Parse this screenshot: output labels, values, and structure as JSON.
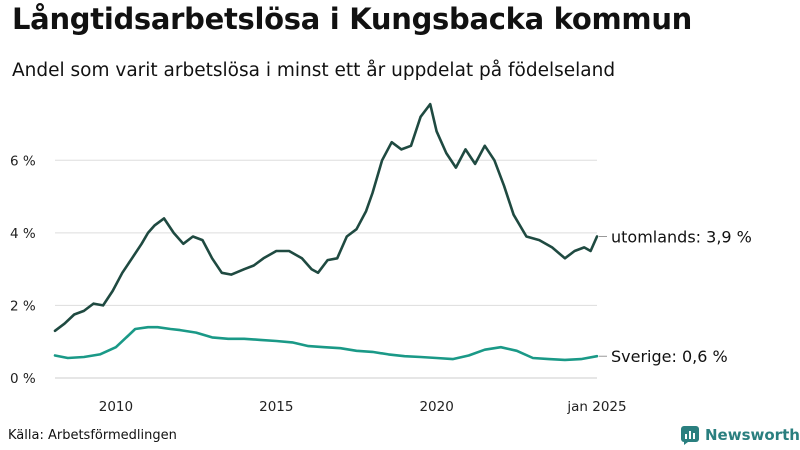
{
  "title": "Långtidsarbetslösa i Kungsbacka kommun",
  "subtitle": "Andel som varit arbetslösa i minst ett år uppdelat på födelseland",
  "source": "Källa: Arbetsförmedlingen",
  "brand": "Newsworthy",
  "colors": {
    "utomlands": "#1f4a41",
    "sverige": "#1a9987",
    "brand": "#2a7f7f",
    "grid": "#dddddd"
  },
  "chart_data": {
    "type": "line",
    "title": "Långtidsarbetslösa i Kungsbacka kommun",
    "subtitle": "Andel som varit arbetslösa i minst ett år uppdelat på födelseland",
    "xlabel": "",
    "ylabel": "",
    "x_range": [
      2008.1,
      2025.0
    ],
    "ylim": [
      0,
      7.8
    ],
    "y_ticks": [
      {
        "value": 0,
        "label": "0 %"
      },
      {
        "value": 2,
        "label": "2 %"
      },
      {
        "value": 4,
        "label": "4 %"
      },
      {
        "value": 6,
        "label": "6 %"
      }
    ],
    "x_ticks": [
      {
        "value": 2010,
        "label": "2010"
      },
      {
        "value": 2015,
        "label": "2015"
      },
      {
        "value": 2020,
        "label": "2020"
      },
      {
        "value": 2025,
        "label": "jan 2025"
      }
    ],
    "grid": true,
    "legend": "end-labels",
    "series": [
      {
        "key": "utomlands",
        "end_label": "utomlands: 3,9 %",
        "x": [
          2008.1,
          2008.4,
          2008.7,
          2009.0,
          2009.3,
          2009.6,
          2009.9,
          2010.2,
          2010.5,
          2010.8,
          2011.0,
          2011.2,
          2011.5,
          2011.8,
          2012.1,
          2012.4,
          2012.7,
          2013.0,
          2013.3,
          2013.6,
          2014.0,
          2014.3,
          2014.6,
          2015.0,
          2015.4,
          2015.8,
          2016.1,
          2016.3,
          2016.6,
          2016.9,
          2017.2,
          2017.5,
          2017.8,
          2018.0,
          2018.3,
          2018.6,
          2018.9,
          2019.2,
          2019.5,
          2019.8,
          2020.0,
          2020.3,
          2020.6,
          2020.9,
          2021.2,
          2021.5,
          2021.8,
          2022.1,
          2022.4,
          2022.8,
          2023.2,
          2023.6,
          2024.0,
          2024.3,
          2024.6,
          2024.8,
          2025.0
        ],
        "values": [
          1.3,
          1.5,
          1.75,
          1.85,
          2.05,
          2.0,
          2.4,
          2.9,
          3.3,
          3.7,
          4.0,
          4.2,
          4.4,
          4.0,
          3.7,
          3.9,
          3.8,
          3.3,
          2.9,
          2.85,
          3.0,
          3.1,
          3.3,
          3.5,
          3.5,
          3.3,
          3.0,
          2.9,
          3.25,
          3.3,
          3.9,
          4.1,
          4.6,
          5.1,
          6.0,
          6.5,
          6.3,
          6.4,
          7.2,
          7.55,
          6.8,
          6.2,
          5.8,
          6.3,
          5.9,
          6.4,
          6.0,
          5.3,
          4.5,
          3.9,
          3.8,
          3.6,
          3.3,
          3.5,
          3.6,
          3.5,
          3.9
        ]
      },
      {
        "key": "sverige",
        "end_label": "Sverige: 0,6 %",
        "x": [
          2008.1,
          2008.5,
          2009.0,
          2009.5,
          2010.0,
          2010.3,
          2010.6,
          2011.0,
          2011.3,
          2011.7,
          2012.0,
          2012.5,
          2013.0,
          2013.5,
          2014.0,
          2014.5,
          2015.0,
          2015.5,
          2016.0,
          2016.5,
          2017.0,
          2017.5,
          2018.0,
          2018.5,
          2019.0,
          2019.5,
          2020.0,
          2020.5,
          2021.0,
          2021.5,
          2022.0,
          2022.5,
          2023.0,
          2023.5,
          2024.0,
          2024.5,
          2025.0
        ],
        "values": [
          0.62,
          0.55,
          0.58,
          0.65,
          0.85,
          1.1,
          1.35,
          1.4,
          1.4,
          1.35,
          1.32,
          1.25,
          1.12,
          1.08,
          1.08,
          1.05,
          1.02,
          0.98,
          0.88,
          0.85,
          0.82,
          0.75,
          0.72,
          0.65,
          0.6,
          0.58,
          0.55,
          0.52,
          0.62,
          0.78,
          0.85,
          0.75,
          0.55,
          0.52,
          0.5,
          0.52,
          0.6
        ]
      }
    ]
  }
}
